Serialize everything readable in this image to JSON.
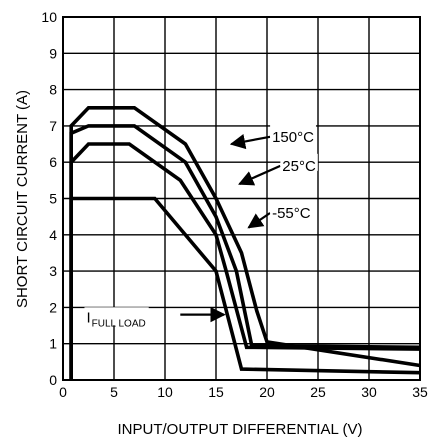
{
  "chart_data": {
    "type": "line",
    "xlabel": "INPUT/OUTPUT DIFFERENTIAL (V)",
    "ylabel": "SHORT CIRCUIT CURRENT (A)",
    "xlim": [
      0,
      35
    ],
    "ylim": [
      0,
      10
    ],
    "x_ticks": [
      "0",
      "5",
      "10",
      "15",
      "20",
      "25",
      "30",
      "35"
    ],
    "y_ticks": [
      "0",
      "1",
      "2",
      "3",
      "4",
      "5",
      "6",
      "7",
      "8",
      "9",
      "10"
    ],
    "grid": true,
    "colors": {
      "line": "#000000",
      "grid": "#000000",
      "background": "#ffffff"
    },
    "series": [
      {
        "name": "150°C",
        "x": [
          0.8,
          0.8,
          2.5,
          7,
          12,
          15,
          17.5,
          19,
          20,
          35
        ],
        "y": [
          0,
          7.0,
          7.5,
          7.5,
          6.5,
          5.0,
          3.5,
          1.9,
          1.05,
          0.4
        ]
      },
      {
        "name": "25°C",
        "x": [
          0.8,
          0.8,
          2.5,
          7,
          12,
          15,
          17,
          18.5,
          35
        ],
        "y": [
          0,
          6.8,
          7.0,
          7.0,
          6.0,
          4.5,
          3.0,
          0.95,
          0.9
        ]
      },
      {
        "name": "-55°C",
        "x": [
          0.8,
          0.8,
          2.5,
          6.5,
          11.5,
          15,
          16,
          18,
          35
        ],
        "y": [
          0,
          6.0,
          6.5,
          6.5,
          5.5,
          4.0,
          3.0,
          0.9,
          0.85
        ]
      },
      {
        "name": "I_FULL LOAD",
        "x": [
          0.8,
          0.8,
          9,
          15,
          17.5,
          35
        ],
        "y": [
          0,
          5.0,
          5.0,
          3.0,
          0.3,
          0.2
        ]
      }
    ],
    "annotations": [
      {
        "series": "150°C",
        "text": "150°C",
        "text_at": [
          20.5,
          6.7
        ],
        "arrow_from": [
          20.3,
          6.7
        ],
        "arrow_to": [
          16.5,
          6.5
        ]
      },
      {
        "series": "25°C",
        "text": "25°C",
        "text_at": [
          21.5,
          5.9
        ],
        "arrow_from": [
          21.3,
          5.9
        ],
        "arrow_to": [
          17.3,
          5.4
        ]
      },
      {
        "series": "-55°C",
        "text": "-55°C",
        "text_at": [
          20.5,
          4.6
        ],
        "arrow_from": [
          20.3,
          4.6
        ],
        "arrow_to": [
          18.2,
          4.2
        ]
      },
      {
        "series": "I_FULL LOAD",
        "text_main": "I",
        "text_sub": "FULL LOAD",
        "text_at": [
          2.3,
          1.7
        ],
        "arrow_from": [
          11.5,
          1.8
        ],
        "arrow_to": [
          15.8,
          1.8
        ]
      }
    ]
  }
}
